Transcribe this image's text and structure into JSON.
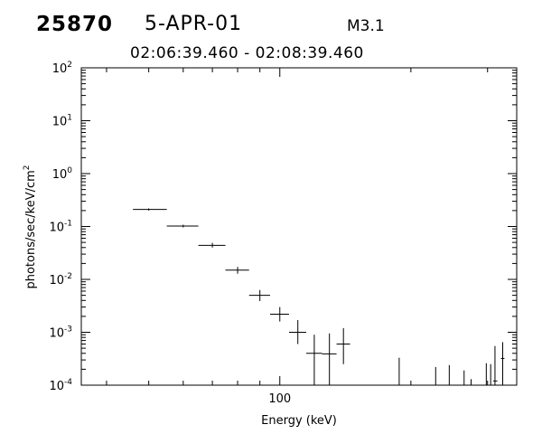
{
  "header": {
    "event_id": "25870",
    "date": "5-APR-01",
    "flare_class": "M3.1",
    "time_range": "02:06:39.460 - 02:08:39.460"
  },
  "chart_data": {
    "type": "scatter",
    "title": "",
    "xlabel": "Energy (keV)",
    "ylabel": "photons/sec/keV/cm",
    "ylabel_superscript": "2",
    "x_scale": "log",
    "y_scale": "log",
    "xlim": [
      35,
      350
    ],
    "ylim": [
      0.0001,
      100
    ],
    "x_tick_labels": [
      "100"
    ],
    "y_tick_bases": [
      "10",
      "10",
      "10",
      "10",
      "10",
      "10",
      "10"
    ],
    "y_tick_exponents": [
      "-4",
      "-3",
      "-2",
      "-1",
      "0",
      "1",
      "2"
    ],
    "y_tick_values": [
      0.0001,
      0.001,
      0.01,
      0.1,
      1,
      10,
      100
    ],
    "grid": false,
    "legend": "none",
    "points": [
      {
        "x": 50,
        "y": 0.21,
        "xlo": 46,
        "xhi": 55,
        "ylo": 0.2,
        "yhi": 0.22
      },
      {
        "x": 60,
        "y": 0.102,
        "xlo": 55,
        "xhi": 65,
        "ylo": 0.096,
        "yhi": 0.108
      },
      {
        "x": 70,
        "y": 0.044,
        "xlo": 65,
        "xhi": 75,
        "ylo": 0.04,
        "yhi": 0.049
      },
      {
        "x": 80,
        "y": 0.015,
        "xlo": 75,
        "xhi": 85,
        "ylo": 0.0128,
        "yhi": 0.0172
      },
      {
        "x": 90,
        "y": 0.005,
        "xlo": 85,
        "xhi": 95,
        "ylo": 0.0039,
        "yhi": 0.0063
      },
      {
        "x": 100,
        "y": 0.0022,
        "xlo": 95,
        "xhi": 105,
        "ylo": 0.0016,
        "yhi": 0.003
      },
      {
        "x": 110,
        "y": 0.001,
        "xlo": 105,
        "xhi": 115,
        "ylo": 0.0006,
        "yhi": 0.0017
      },
      {
        "x": 120,
        "y": 0.0004,
        "xlo": 115,
        "xhi": 125,
        "ylo": 0.0001,
        "yhi": 0.0009
      },
      {
        "x": 130,
        "y": 0.00039,
        "xlo": 125,
        "xhi": 135,
        "ylo": 0.0001,
        "yhi": 0.00095
      },
      {
        "x": 140,
        "y": 0.0006,
        "xlo": 135,
        "xhi": 145,
        "ylo": 0.00025,
        "yhi": 0.0012
      }
    ],
    "upper_limits": [
      {
        "x": 188,
        "yhi": 0.00033
      },
      {
        "x": 228,
        "yhi": 0.00022
      },
      {
        "x": 245,
        "yhi": 0.00024
      },
      {
        "x": 265,
        "yhi": 0.00019
      },
      {
        "x": 275,
        "yhi": 0.00013
      },
      {
        "x": 298,
        "yhi": 0.00026
      },
      {
        "x": 305,
        "yhi": 0.00025
      },
      {
        "x": 312,
        "yhi": 0.00055
      },
      {
        "x": 325,
        "yhi": 0.00065
      }
    ],
    "extra_segments": [
      {
        "x": 312,
        "y": 0.00012,
        "xlo": 309,
        "xhi": 316
      },
      {
        "x": 325,
        "y": 0.00032,
        "xlo": 322,
        "xhi": 328
      }
    ]
  }
}
